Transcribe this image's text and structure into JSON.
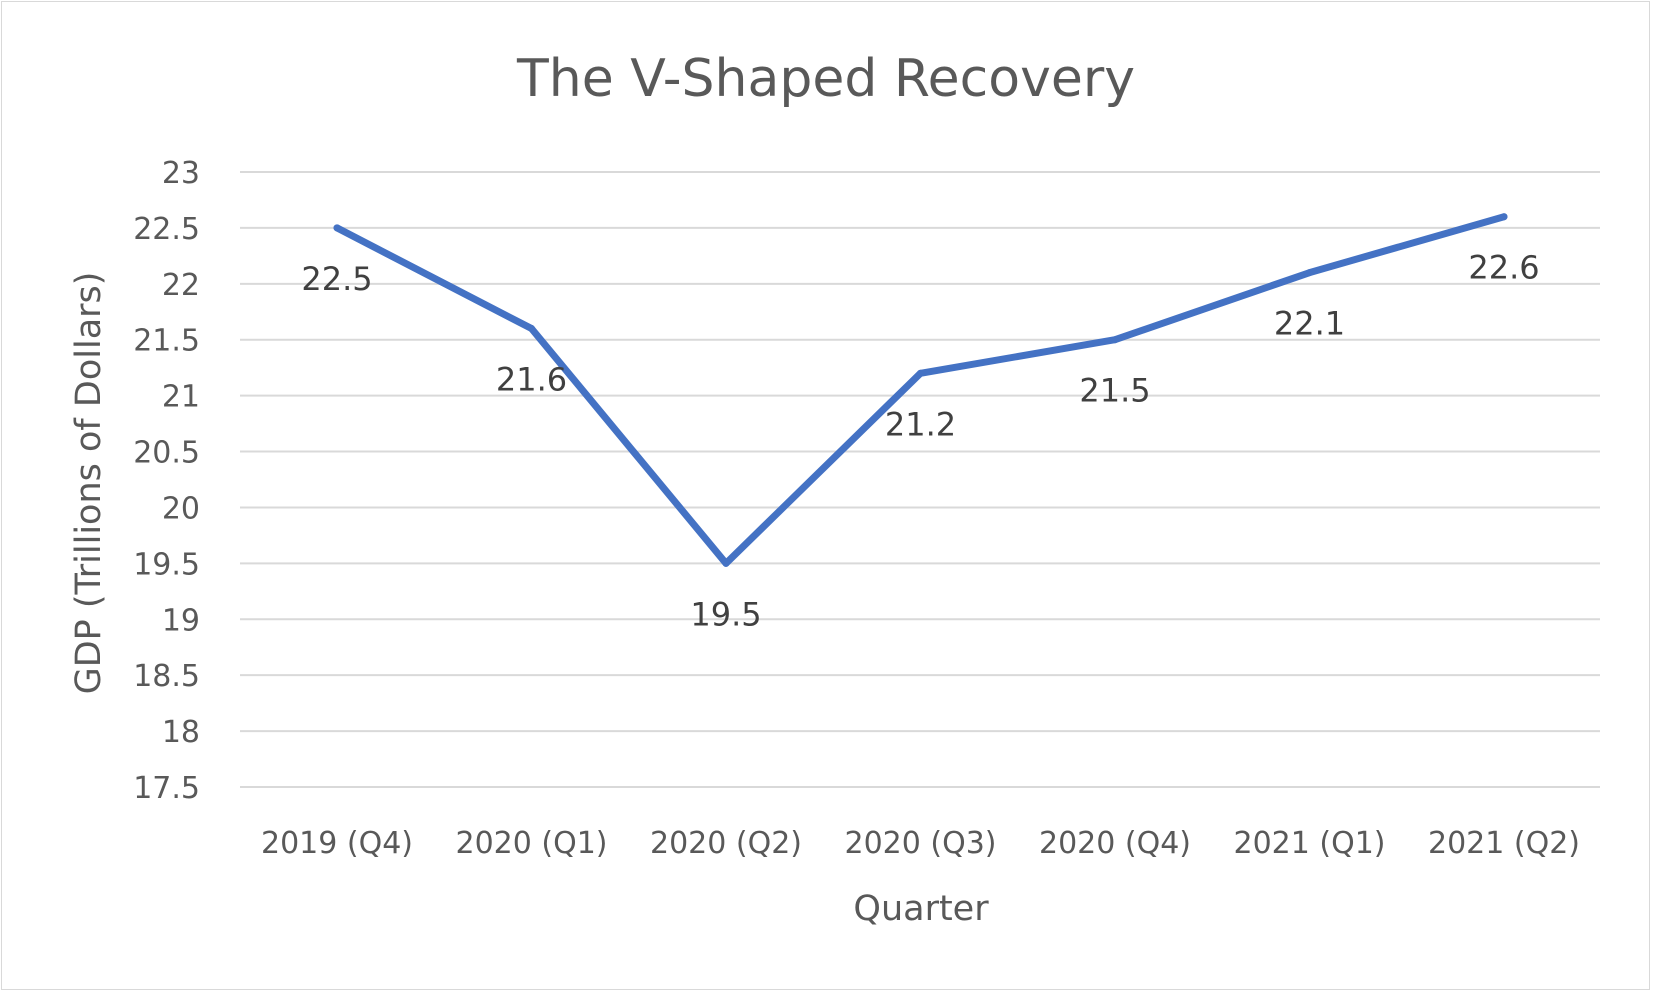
{
  "chart_data": {
    "type": "line",
    "title": "The V-Shaped Recovery",
    "xlabel": "Quarter",
    "ylabel": "GDP (Trillions of Dollars)",
    "categories": [
      "2019 (Q4)",
      "2020 (Q1)",
      "2020 (Q2)",
      "2020 (Q3)",
      "2020 (Q4)",
      "2021 (Q1)",
      "2021 (Q2)"
    ],
    "series": [
      {
        "values": [
          22.5,
          21.6,
          19.5,
          21.2,
          21.5,
          22.1,
          22.6
        ],
        "data_labels": [
          "22.5",
          "21.6",
          "19.5",
          "21.2",
          "21.5",
          "22.1",
          "22.6"
        ],
        "color": "#4472c4"
      }
    ],
    "ylim": [
      17.5,
      23
    ],
    "yticks": [
      17.5,
      18,
      18.5,
      19,
      19.5,
      20,
      20.5,
      21,
      21.5,
      22,
      22.5,
      23
    ],
    "ytick_labels": [
      "17.5",
      "18",
      "18.5",
      "19",
      "19.5",
      "20",
      "20.5",
      "21",
      "21.5",
      "22",
      "22.5",
      "23"
    ],
    "grid": true,
    "legend": "none"
  }
}
